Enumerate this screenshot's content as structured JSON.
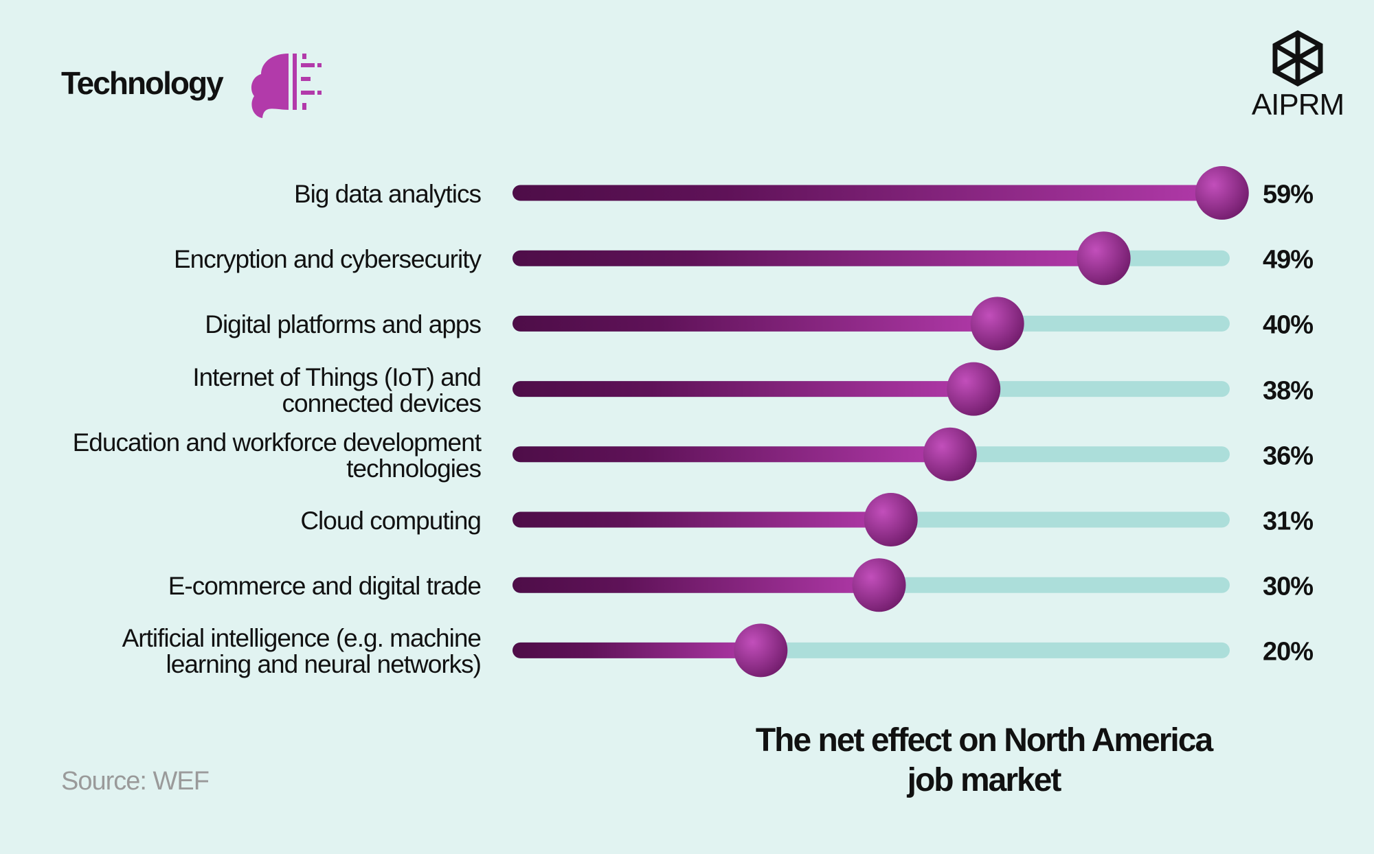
{
  "chart_data": {
    "type": "slider",
    "header": "Technology",
    "brand": "AIPRM",
    "title": "The net effect on North America\njob market",
    "source": "Source: WEF",
    "categories": [
      "Big data analytics",
      "Encryption and cybersecurity",
      "Digital platforms and apps",
      "Internet of Things (IoT) and\nconnected devices",
      "Education and workforce development\ntechnologies",
      "Cloud computing",
      "E-commerce and digital trade",
      "Artificial intelligence (e.g. machine\nlearning and neural networks)"
    ],
    "values": [
      59,
      49,
      40,
      38,
      36,
      31,
      30,
      20
    ],
    "value_labels": [
      "59%",
      "49%",
      "40%",
      "38%",
      "36%",
      "31%",
      "30%",
      "20%"
    ],
    "xlim": [
      0,
      60
    ],
    "color": "#b23aaa",
    "track_color": "#acdeda"
  }
}
